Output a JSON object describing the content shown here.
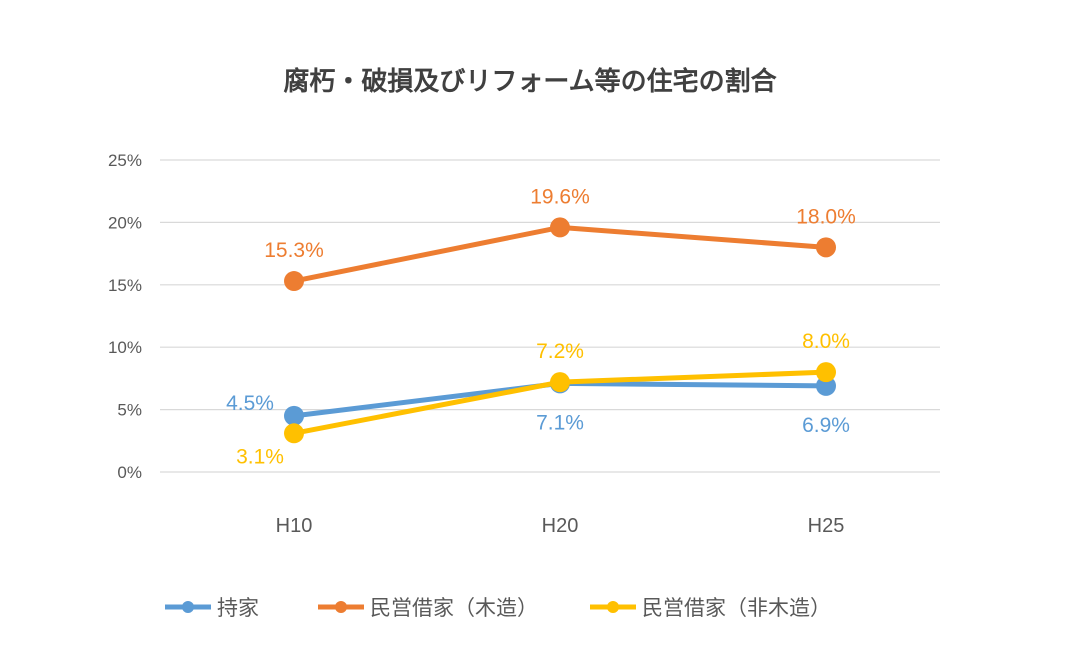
{
  "chart_data": {
    "type": "line",
    "title": "腐朽・破損及びリフォーム等の住宅の割合",
    "categories": [
      "H10",
      "H20",
      "H25"
    ],
    "ylim": [
      0,
      25
    ],
    "yticks": [
      0,
      5,
      10,
      15,
      20,
      25
    ],
    "ytick_labels": [
      "0%",
      "5%",
      "10%",
      "15%",
      "20%",
      "25%"
    ],
    "grid": true,
    "legend": "bottom",
    "series": [
      {
        "name": "持家",
        "color": "#5B9BD5",
        "values": [
          4.5,
          7.1,
          6.9
        ],
        "labels": [
          "4.5%",
          "7.1%",
          "6.9%"
        ],
        "label_pos": [
          "left",
          "below",
          "below"
        ]
      },
      {
        "name": "民営借家（木造）",
        "color": "#ED7D31",
        "values": [
          15.3,
          19.6,
          18.0
        ],
        "labels": [
          "15.3%",
          "19.6%",
          "18.0%"
        ],
        "label_pos": [
          "above",
          "above",
          "above"
        ]
      },
      {
        "name": "民営借家（非木造）",
        "color": "#FFC000",
        "values": [
          3.1,
          7.2,
          8.0
        ],
        "labels": [
          "3.1%",
          "7.2%",
          "8.0%"
        ],
        "label_pos": [
          "below-left",
          "above",
          "above"
        ]
      }
    ]
  }
}
